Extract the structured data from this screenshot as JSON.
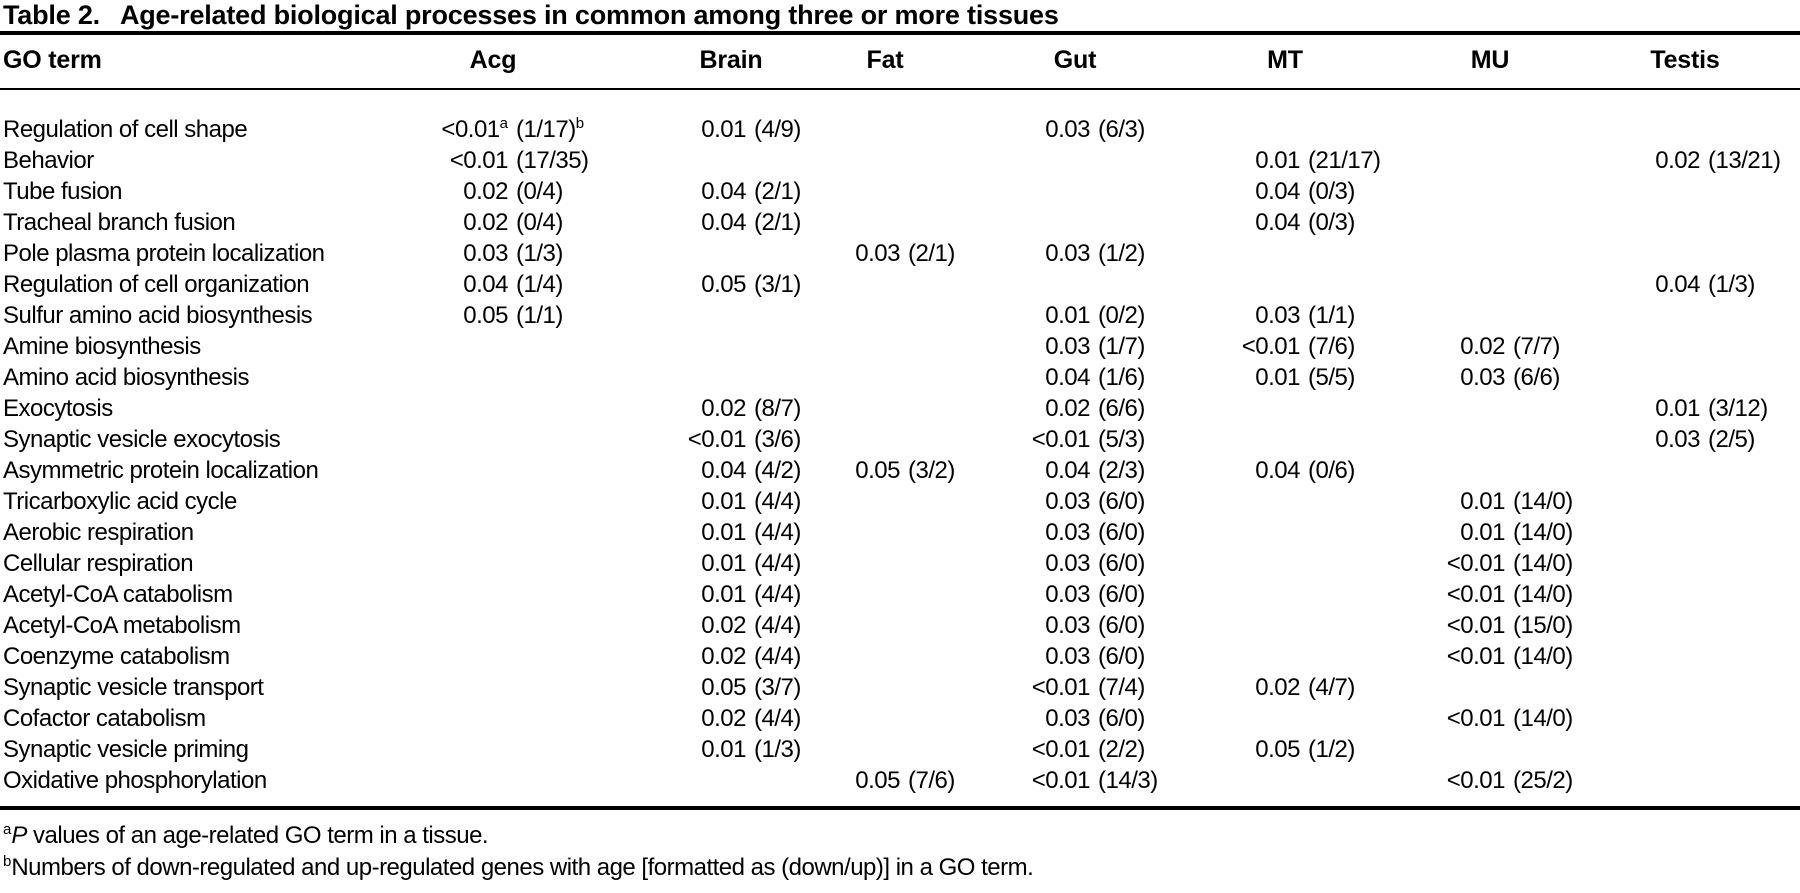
{
  "table": {
    "label": "Table 2.",
    "title": "Age-related biological processes in common among three or more tissues",
    "columns": [
      "GO term",
      "Acg",
      "Brain",
      "Fat",
      "Gut",
      "MT",
      "MU",
      "Testis"
    ],
    "rows": [
      {
        "term": "Regulation of cell shape",
        "values": {
          "Acg": {
            "p": "<0.01",
            "p_sup": "a",
            "genes": "(1/17)",
            "genes_sup": "b"
          },
          "Brain": {
            "p": "0.01",
            "genes": "(4/9)"
          },
          "Gut": {
            "p": "0.03",
            "genes": "(6/3)"
          }
        }
      },
      {
        "term": "Behavior",
        "values": {
          "Acg": {
            "p": "<0.01",
            "genes": "(17/35)"
          },
          "MT": {
            "p": "0.01",
            "genes": "(21/17)"
          },
          "Testis": {
            "p": "0.02",
            "genes": "(13/21)"
          }
        }
      },
      {
        "term": "Tube fusion",
        "values": {
          "Acg": {
            "p": "0.02",
            "genes": "(0/4)"
          },
          "Brain": {
            "p": "0.04",
            "genes": "(2/1)"
          },
          "MT": {
            "p": "0.04",
            "genes": "(0/3)"
          }
        }
      },
      {
        "term": "Tracheal branch fusion",
        "values": {
          "Acg": {
            "p": "0.02",
            "genes": "(0/4)"
          },
          "Brain": {
            "p": "0.04",
            "genes": "(2/1)"
          },
          "MT": {
            "p": "0.04",
            "genes": "(0/3)"
          }
        }
      },
      {
        "term": "Pole plasma protein localization",
        "values": {
          "Acg": {
            "p": "0.03",
            "genes": "(1/3)"
          },
          "Fat": {
            "p": "0.03",
            "genes": "(2/1)"
          },
          "Gut": {
            "p": "0.03",
            "genes": "(1/2)"
          }
        }
      },
      {
        "term": "Regulation of cell organization",
        "values": {
          "Acg": {
            "p": "0.04",
            "genes": "(1/4)"
          },
          "Brain": {
            "p": "0.05",
            "genes": "(3/1)"
          },
          "Testis": {
            "p": "0.04",
            "genes": "(1/3)"
          }
        }
      },
      {
        "term": "Sulfur amino acid biosynthesis",
        "values": {
          "Acg": {
            "p": "0.05",
            "genes": "(1/1)"
          },
          "Gut": {
            "p": "0.01",
            "genes": "(0/2)"
          },
          "MT": {
            "p": "0.03",
            "genes": "(1/1)"
          }
        }
      },
      {
        "term": "Amine biosynthesis",
        "values": {
          "Gut": {
            "p": "0.03",
            "genes": "(1/7)"
          },
          "MT": {
            "p": "<0.01",
            "genes": "(7/6)"
          },
          "MU": {
            "p": "0.02",
            "genes": "(7/7)"
          }
        }
      },
      {
        "term": "Amino acid biosynthesis",
        "values": {
          "Gut": {
            "p": "0.04",
            "genes": "(1/6)"
          },
          "MT": {
            "p": "0.01",
            "genes": "(5/5)"
          },
          "MU": {
            "p": "0.03",
            "genes": "(6/6)"
          }
        }
      },
      {
        "term": "Exocytosis",
        "values": {
          "Brain": {
            "p": "0.02",
            "genes": "(8/7)"
          },
          "Gut": {
            "p": "0.02",
            "genes": "(6/6)"
          },
          "Testis": {
            "p": "0.01",
            "genes": "(3/12)"
          }
        }
      },
      {
        "term": "Synaptic vesicle exocytosis",
        "values": {
          "Brain": {
            "p": "<0.01",
            "genes": "(3/6)"
          },
          "Gut": {
            "p": "<0.01",
            "genes": "(5/3)"
          },
          "Testis": {
            "p": "0.03",
            "genes": "(2/5)"
          }
        }
      },
      {
        "term": "Asymmetric protein localization",
        "values": {
          "Brain": {
            "p": "0.04",
            "genes": "(4/2)"
          },
          "Fat": {
            "p": "0.05",
            "genes": "(3/2)"
          },
          "Gut": {
            "p": "0.04",
            "genes": "(2/3)"
          },
          "MT": {
            "p": "0.04",
            "genes": "(0/6)"
          }
        }
      },
      {
        "term": "Tricarboxylic acid cycle",
        "values": {
          "Brain": {
            "p": "0.01",
            "genes": "(4/4)"
          },
          "Gut": {
            "p": "0.03",
            "genes": "(6/0)"
          },
          "MU": {
            "p": "0.01",
            "genes": "(14/0)"
          }
        }
      },
      {
        "term": "Aerobic respiration",
        "values": {
          "Brain": {
            "p": "0.01",
            "genes": "(4/4)"
          },
          "Gut": {
            "p": "0.03",
            "genes": "(6/0)"
          },
          "MU": {
            "p": "0.01",
            "genes": "(14/0)"
          }
        }
      },
      {
        "term": "Cellular respiration",
        "values": {
          "Brain": {
            "p": "0.01",
            "genes": "(4/4)"
          },
          "Gut": {
            "p": "0.03",
            "genes": "(6/0)"
          },
          "MU": {
            "p": "<0.01",
            "genes": "(14/0)"
          }
        }
      },
      {
        "term": "Acetyl-CoA catabolism",
        "values": {
          "Brain": {
            "p": "0.01",
            "genes": "(4/4)"
          },
          "Gut": {
            "p": "0.03",
            "genes": "(6/0)"
          },
          "MU": {
            "p": "<0.01",
            "genes": "(14/0)"
          }
        }
      },
      {
        "term": "Acetyl-CoA metabolism",
        "values": {
          "Brain": {
            "p": "0.02",
            "genes": "(4/4)"
          },
          "Gut": {
            "p": "0.03",
            "genes": "(6/0)"
          },
          "MU": {
            "p": "<0.01",
            "genes": "(15/0)"
          }
        }
      },
      {
        "term": "Coenzyme catabolism",
        "values": {
          "Brain": {
            "p": "0.02",
            "genes": "(4/4)"
          },
          "Gut": {
            "p": "0.03",
            "genes": "(6/0)"
          },
          "MU": {
            "p": "<0.01",
            "genes": "(14/0)"
          }
        }
      },
      {
        "term": "Synaptic vesicle transport",
        "values": {
          "Brain": {
            "p": "0.05",
            "genes": "(3/7)"
          },
          "Gut": {
            "p": "<0.01",
            "genes": "(7/4)"
          },
          "MT": {
            "p": "0.02",
            "genes": "(4/7)"
          }
        }
      },
      {
        "term": "Cofactor catabolism",
        "values": {
          "Brain": {
            "p": "0.02",
            "genes": "(4/4)"
          },
          "Gut": {
            "p": "0.03",
            "genes": "(6/0)"
          },
          "MU": {
            "p": "<0.01",
            "genes": "(14/0)"
          }
        }
      },
      {
        "term": "Synaptic vesicle priming",
        "values": {
          "Brain": {
            "p": "0.01",
            "genes": "(1/3)"
          },
          "Gut": {
            "p": "<0.01",
            "genes": "(2/2)"
          },
          "MT": {
            "p": "0.05",
            "genes": "(1/2)"
          }
        }
      },
      {
        "term": "Oxidative phosphorylation",
        "values": {
          "Fat": {
            "p": "0.05",
            "genes": "(7/6)"
          },
          "Gut": {
            "p": "<0.01",
            "genes": "(14/3)"
          },
          "MU": {
            "p": "<0.01",
            "genes": "(25/2)"
          }
        }
      }
    ],
    "footnotes": [
      {
        "marker": "a",
        "italic_lead": "P",
        "text": " values of an age-related GO term in a tissue."
      },
      {
        "marker": "b",
        "italic_lead": "",
        "text": "Numbers of down-regulated and up-regulated genes with age [formatted as (down/up)] in a GO term."
      }
    ]
  }
}
